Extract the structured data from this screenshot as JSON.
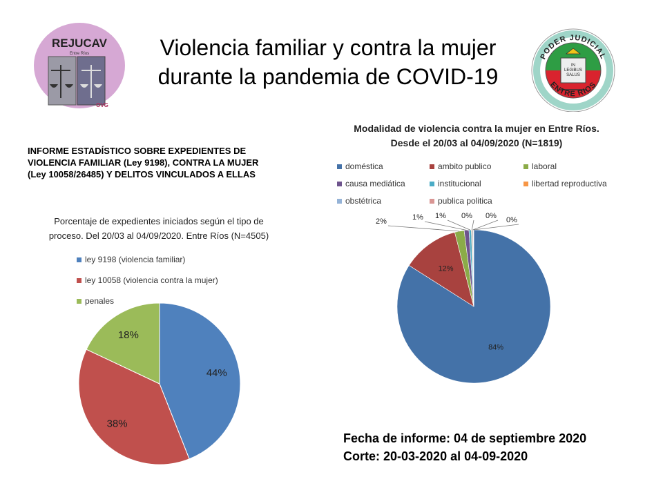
{
  "header": {
    "title_line1": "Violencia familiar y contra la mujer",
    "title_line2": "durante la pandemia de COVID-19",
    "logo_left": {
      "name": "REJUCAV",
      "sub": "Entre Ríos",
      "tag": "OVG"
    },
    "logo_right": {
      "top": "PODER JUDICIAL",
      "bottom": "ENTRE RIOS",
      "motto1": "IN",
      "motto2": "LEGIBUS",
      "motto3": "SALUS"
    }
  },
  "report": {
    "subtitle_line1": "INFORME ESTADÍSTICO SOBRE EXPEDIENTES  DE",
    "subtitle_line2": "VIOLENCIA FAMILIAR (Ley 9198), CONTRA LA MUJER",
    "subtitle_line3": "(Ley 10058/26485) Y DELITOS VINCULADOS A ELLAS",
    "date_line": "Fecha de informe: 04 de septiembre 2020",
    "cut_line": "Corte: 20-03-2020 al 04-09-2020"
  },
  "colors": {
    "blue": "#4F81BD",
    "red": "#C0504D",
    "green": "#9BBB59",
    "purple": "#8064A2",
    "teal": "#4BACC6",
    "orange": "#F79646",
    "lightblue": "#95B3D7",
    "pink": "#D99694",
    "chart2_blue": "#4472A8",
    "chart2_red": "#A8423F",
    "chart2_green": "#8BAB48",
    "chart2_purple": "#6E548D"
  },
  "chart_data": [
    {
      "type": "pie",
      "title_line1": "Porcentaje de expedientes iniciados según el tipo de",
      "title_line2": "proceso. Del 20/03  al 04/09/2020. Entre Ríos (N=4505)",
      "legend_position": "top",
      "categories": [
        "ley 9198 (violencia familiar)",
        "ley 10058 (violencia contra la mujer)",
        "penales"
      ],
      "values": [
        44,
        38,
        18
      ],
      "labels": [
        "44%",
        "38%",
        "18%"
      ],
      "colors": [
        "#4F81BD",
        "#C0504D",
        "#9BBB59"
      ]
    },
    {
      "type": "pie",
      "title_line1": "Modalidad de violencia contra la mujer en Entre Ríos.",
      "title_line2": "Desde el 20/03 al 04/09/2020 (N=1819)",
      "legend_position": "top",
      "categories": [
        "doméstica",
        "ambito publico",
        "laboral",
        "causa mediática",
        "institucional",
        "libertad reproductiva",
        "obstétrica",
        "publica politica"
      ],
      "values": [
        84,
        12,
        2,
        1,
        0.5,
        0.2,
        0.2,
        0.1
      ],
      "labels": [
        "84%",
        "12%",
        "2%",
        "1%",
        "1%",
        "0%",
        "0%",
        "0%"
      ],
      "colors": [
        "#4472A8",
        "#A8423F",
        "#8BAB48",
        "#6E548D",
        "#4BACC6",
        "#F79646",
        "#95B3D7",
        "#D99694"
      ]
    }
  ]
}
